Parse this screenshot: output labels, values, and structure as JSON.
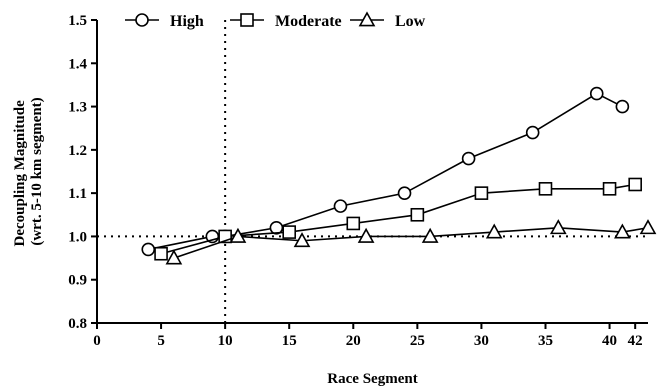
{
  "chart_data": {
    "type": "line",
    "xlabel": "Race Segment",
    "ylabel_lines": [
      "Decoupling Magnitude",
      "(wrt. 5-10 km segment)"
    ],
    "xlim": [
      0,
      43
    ],
    "ylim": [
      0.8,
      1.5
    ],
    "x_ticks": [
      0,
      5,
      10,
      15,
      20,
      25,
      30,
      35,
      40,
      42
    ],
    "x_tick_labels": [
      "0",
      "5",
      "10",
      "15",
      "20",
      "25",
      "30",
      "35",
      "40",
      "42"
    ],
    "y_ticks": [
      0.8,
      0.9,
      1.0,
      1.1,
      1.2,
      1.3,
      1.4,
      1.5
    ],
    "y_tick_labels": [
      "0.8",
      "0.9",
      "1.0",
      "1.1",
      "1.2",
      "1.3",
      "1.4",
      "1.5"
    ],
    "reference_lines": {
      "x": 10,
      "y": 1.0
    },
    "legend_position": "top",
    "grid": false,
    "series": [
      {
        "name": "High",
        "marker": "circle",
        "x": [
          4,
          9,
          10,
          14,
          19,
          24,
          29,
          34,
          39,
          41
        ],
        "y": [
          0.97,
          1.0,
          1.0,
          1.02,
          1.07,
          1.1,
          1.18,
          1.24,
          1.33,
          1.3
        ]
      },
      {
        "name": "Moderate",
        "marker": "square",
        "x": [
          5,
          10,
          15,
          20,
          25,
          30,
          35,
          40,
          42
        ],
        "y": [
          0.96,
          1.0,
          1.01,
          1.03,
          1.05,
          1.1,
          1.11,
          1.11,
          1.12
        ]
      },
      {
        "name": "Low",
        "marker": "triangle",
        "x": [
          6,
          11,
          16,
          21,
          26,
          31,
          36,
          41,
          43
        ],
        "y": [
          0.95,
          1.0,
          0.99,
          1.0,
          1.0,
          1.01,
          1.02,
          1.01,
          1.02
        ]
      }
    ]
  }
}
